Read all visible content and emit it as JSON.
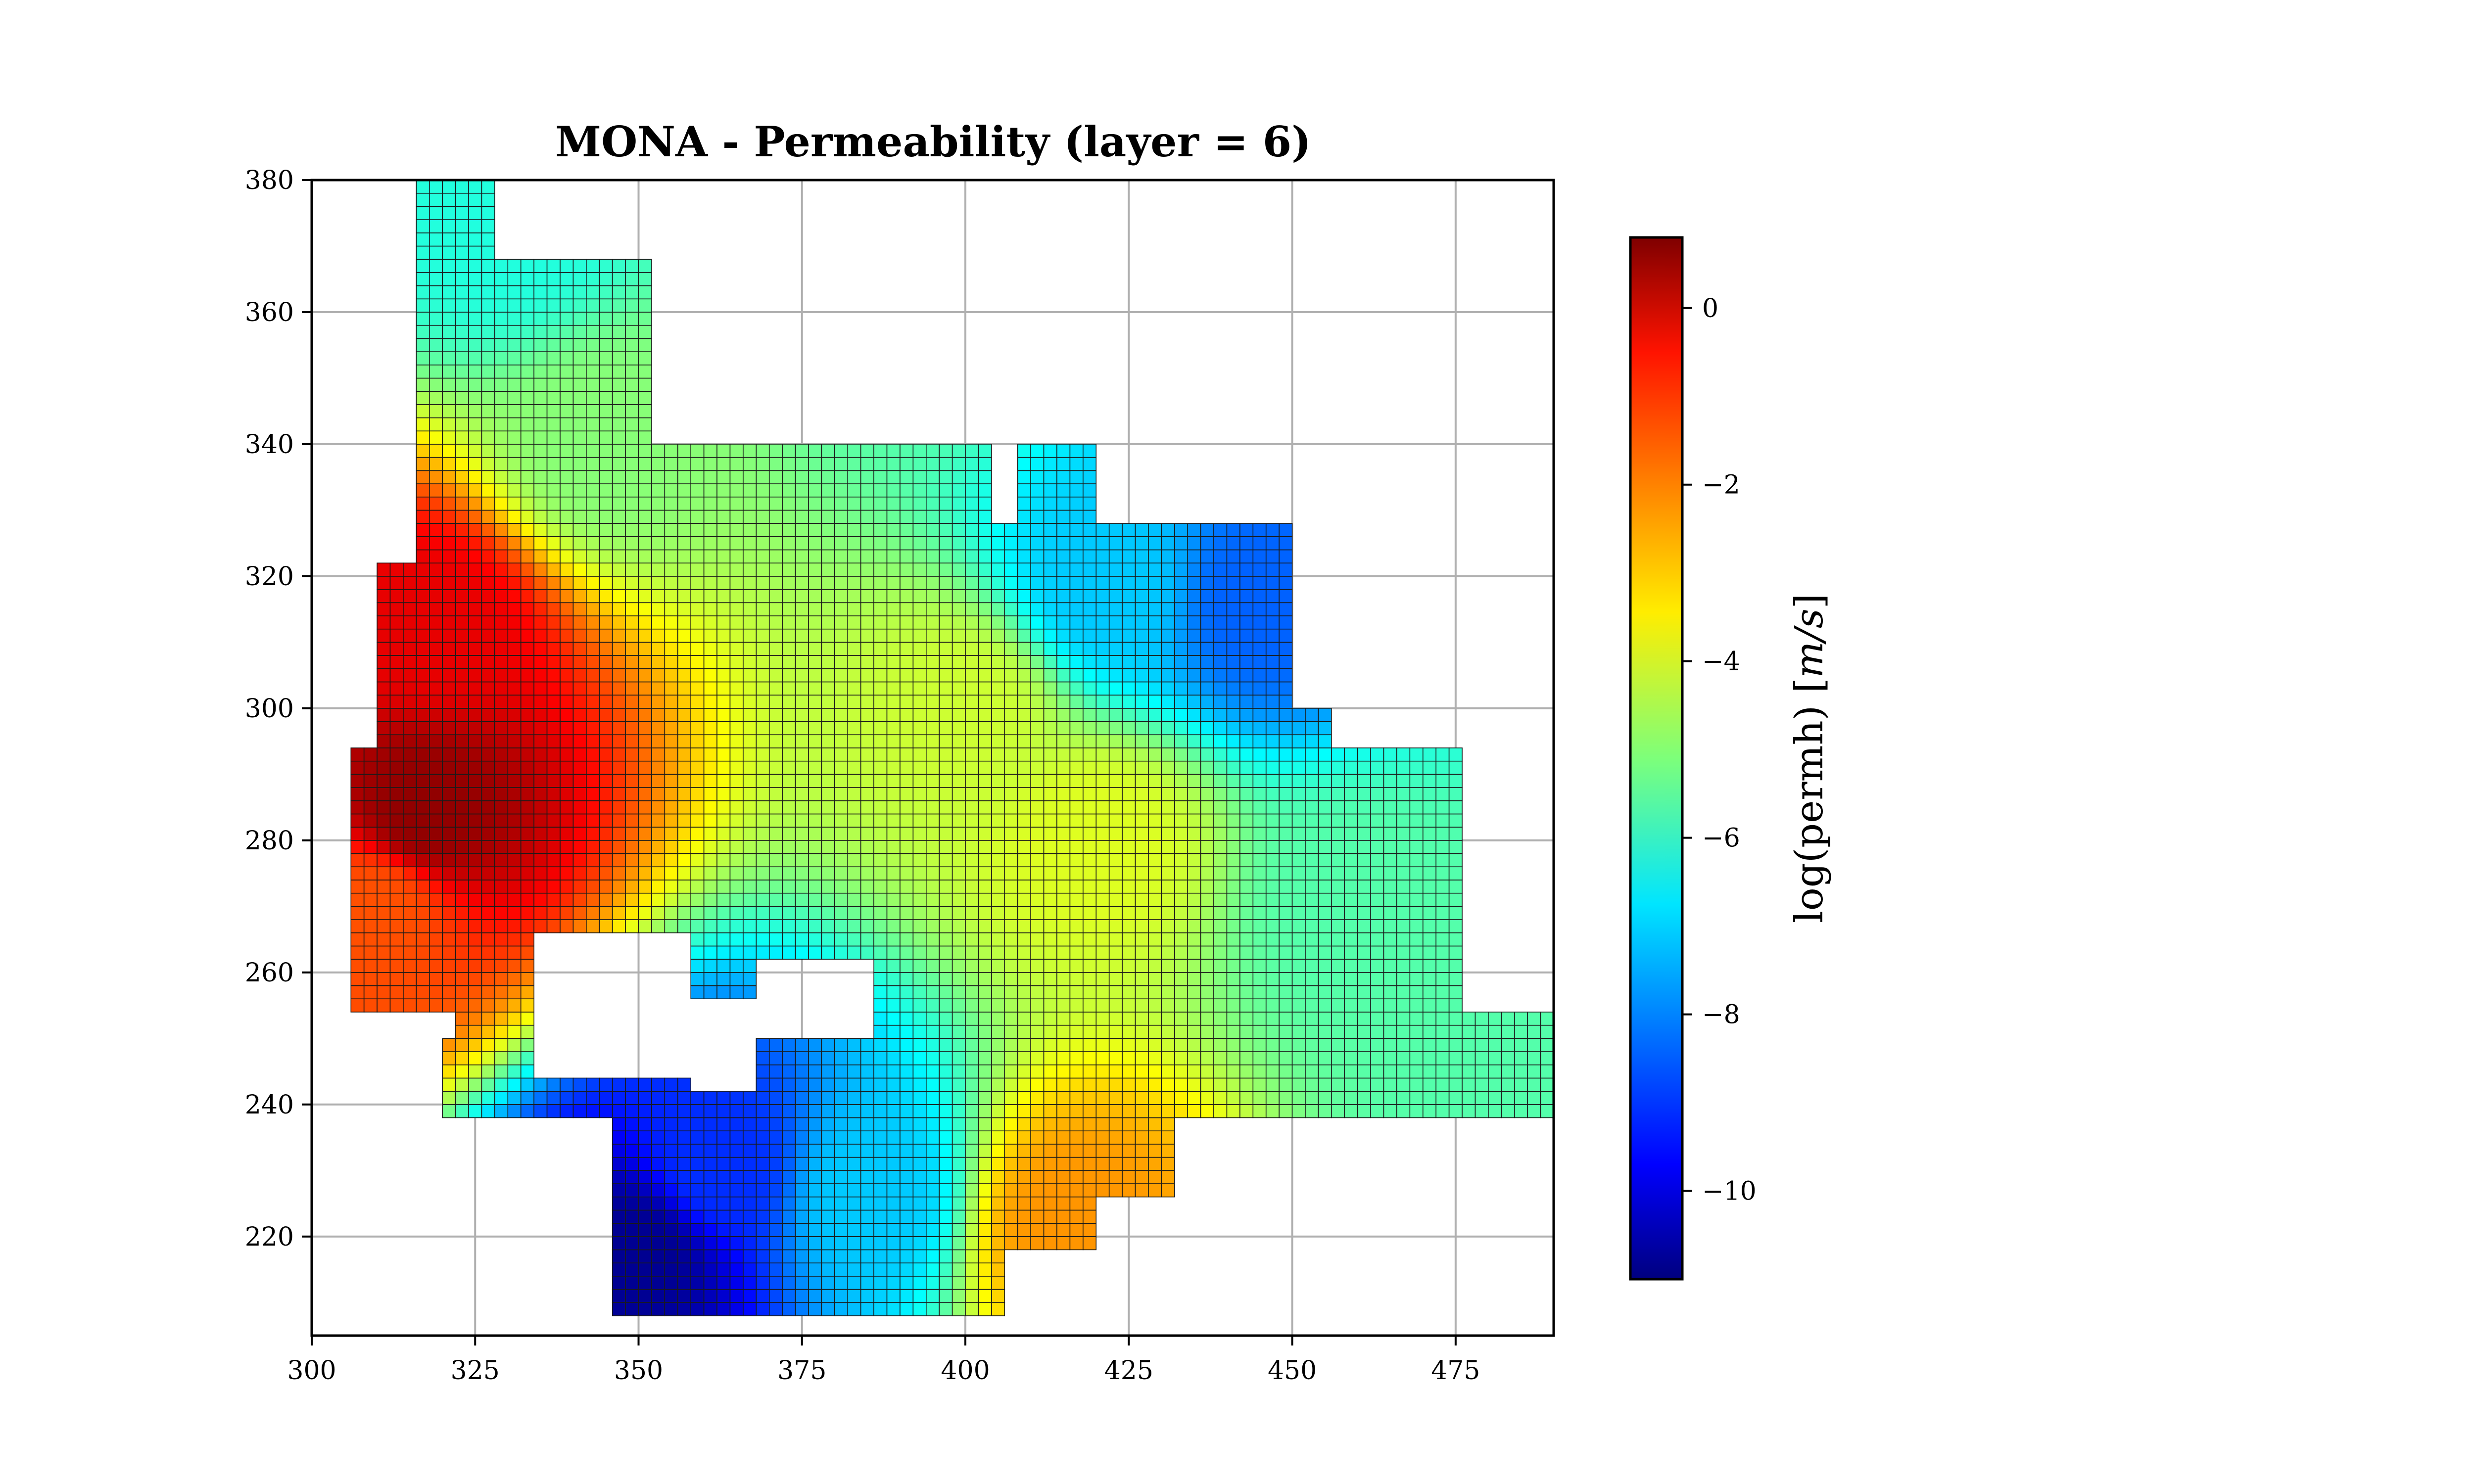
{
  "chart_data": {
    "type": "heatmap",
    "title": "MONA - Permeability (layer = 6)",
    "xlim": [
      300,
      490
    ],
    "ylim": [
      205,
      380
    ],
    "x_ticks": [
      "300",
      "325",
      "350",
      "375",
      "400",
      "425",
      "450",
      "475"
    ],
    "x_tick_values": [
      300,
      325,
      350,
      375,
      400,
      425,
      450,
      475
    ],
    "y_ticks": [
      "220",
      "240",
      "260",
      "280",
      "300",
      "320",
      "340",
      "360",
      "380"
    ],
    "y_tick_values": [
      220,
      240,
      260,
      280,
      300,
      320,
      340,
      360,
      380
    ],
    "grid": true,
    "cell_size": 2,
    "colormap": "jet",
    "colorbar": {
      "label": "log(permh) [m/s]",
      "label_prefix": "log(permh) [",
      "label_unit": "m/s",
      "label_suffix": "]",
      "range": [
        -11,
        0.8
      ],
      "ticks": [
        "0",
        "−2",
        "−4",
        "−6",
        "−8",
        "−10"
      ],
      "tick_values": [
        0,
        -2,
        -4,
        -6,
        -8,
        -10
      ]
    },
    "field_shape": {
      "row_spans": [
        {
          "y": [
            368,
            380
          ],
          "x": [
            316,
            328
          ]
        },
        {
          "y": [
            340,
            368
          ],
          "x": [
            316,
            352
          ]
        },
        {
          "y": [
            328,
            340
          ],
          "x": [
            316,
            404
          ]
        },
        {
          "y": [
            328,
            340
          ],
          "x": [
            408,
            420
          ]
        },
        {
          "y": [
            322,
            328
          ],
          "x": [
            316,
            424
          ]
        },
        {
          "y": [
            322,
            328
          ],
          "x": [
            424,
            450
          ]
        },
        {
          "y": [
            300,
            322
          ],
          "x": [
            310,
            450
          ]
        },
        {
          "y": [
            294,
            300
          ],
          "x": [
            310,
            456
          ]
        },
        {
          "y": [
            266,
            294
          ],
          "x": [
            306,
            476
          ]
        },
        {
          "y": [
            254,
            266
          ],
          "x": [
            306,
            476
          ]
        },
        {
          "y": [
            238,
            254
          ],
          "x": [
            320,
            490
          ]
        },
        {
          "y": [
            226,
            238
          ],
          "x": [
            346,
            432
          ]
        },
        {
          "y": [
            218,
            226
          ],
          "x": [
            346,
            420
          ]
        },
        {
          "y": [
            208,
            218
          ],
          "x": [
            346,
            406
          ]
        }
      ],
      "holes": [
        {
          "x": [
            334,
            358
          ],
          "y": [
            244,
            266
          ]
        },
        {
          "x": [
            358,
            368
          ],
          "y": [
            242,
            256
          ]
        },
        {
          "x": [
            368,
            386
          ],
          "y": [
            250,
            262
          ]
        },
        {
          "x": [
            310,
            322
          ],
          "y": [
            250,
            254
          ]
        }
      ]
    },
    "anchors": [
      {
        "x": 317,
        "y": 284,
        "v": 0.6
      },
      {
        "x": 318,
        "y": 312,
        "v": -0.4
      },
      {
        "x": 310,
        "y": 270,
        "v": -1.6
      },
      {
        "x": 350,
        "y": 218,
        "v": -10.8
      },
      {
        "x": 362,
        "y": 230,
        "v": -9.0
      },
      {
        "x": 385,
        "y": 226,
        "v": -7.2
      },
      {
        "x": 445,
        "y": 316,
        "v": -8.4
      },
      {
        "x": 422,
        "y": 318,
        "v": -7.2
      },
      {
        "x": 416,
        "y": 222,
        "v": -2.4
      },
      {
        "x": 400,
        "y": 300,
        "v": -4.2
      },
      {
        "x": 390,
        "y": 360,
        "v": -5.6
      },
      {
        "x": 460,
        "y": 270,
        "v": -5.6
      },
      {
        "x": 480,
        "y": 245,
        "v": -5.6
      },
      {
        "x": 345,
        "y": 340,
        "v": -5.0
      },
      {
        "x": 330,
        "y": 372,
        "v": -6.2
      },
      {
        "x": 420,
        "y": 280,
        "v": -4.0
      }
    ]
  }
}
